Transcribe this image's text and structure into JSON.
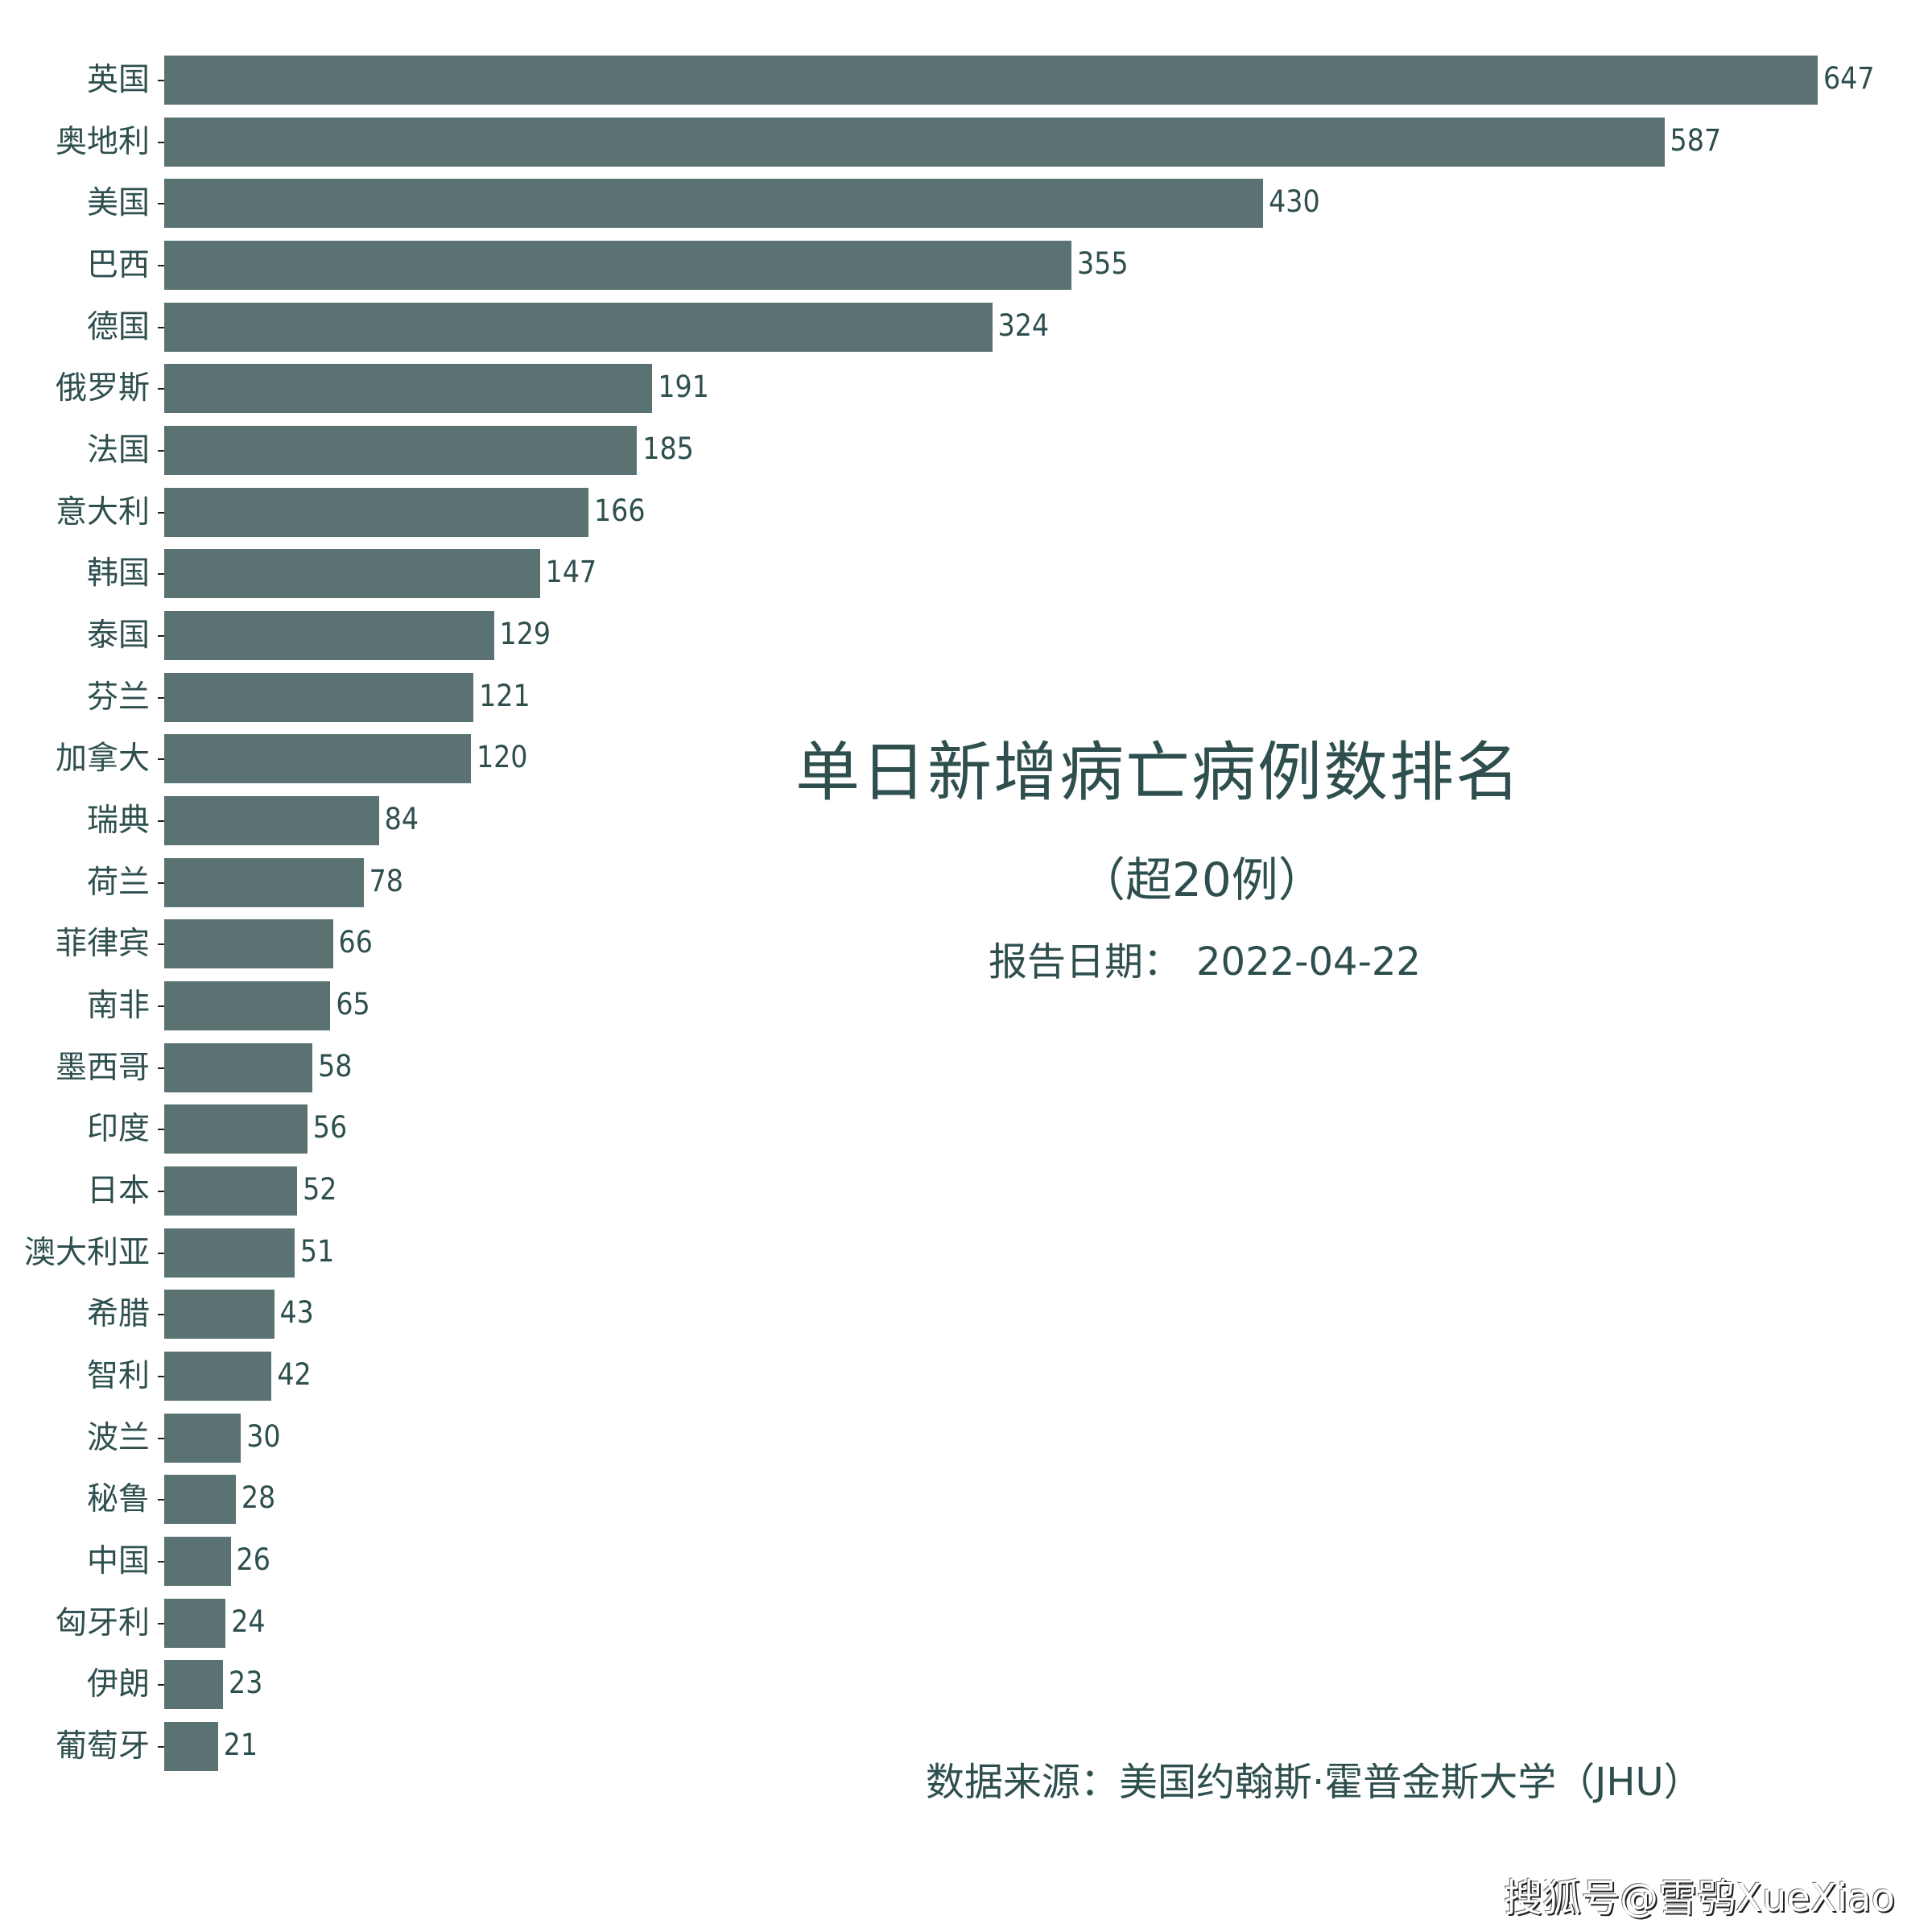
{
  "chart_data": {
    "type": "bar",
    "orientation": "horizontal",
    "title": "单日新增病亡病例数排名",
    "subtitle": "（超20例）",
    "report_date_label": "报告日期：",
    "report_date": "2022-04-22",
    "source": "数据来源：美国约翰斯·霍普金斯大学（JHU）",
    "xlabel": "",
    "ylabel": "",
    "grid": false,
    "legend": null,
    "bar_color": "#5a7372",
    "text_color": "#2f4f4f",
    "categories": [
      "英国",
      "奥地利",
      "美国",
      "巴西",
      "德国",
      "俄罗斯",
      "法国",
      "意大利",
      "韩国",
      "泰国",
      "芬兰",
      "加拿大",
      "瑞典",
      "荷兰",
      "菲律宾",
      "南非",
      "墨西哥",
      "印度",
      "日本",
      "澳大利亚",
      "希腊",
      "智利",
      "波兰",
      "秘鲁",
      "中国",
      "匈牙利",
      "伊朗",
      "葡萄牙"
    ],
    "values": [
      647,
      587,
      430,
      355,
      324,
      191,
      185,
      166,
      147,
      129,
      121,
      120,
      84,
      78,
      66,
      65,
      58,
      56,
      52,
      51,
      43,
      42,
      30,
      28,
      26,
      24,
      23,
      21
    ],
    "xlim": [
      0,
      647
    ]
  },
  "watermark": "搜狐号@雪鸮XueXiao"
}
